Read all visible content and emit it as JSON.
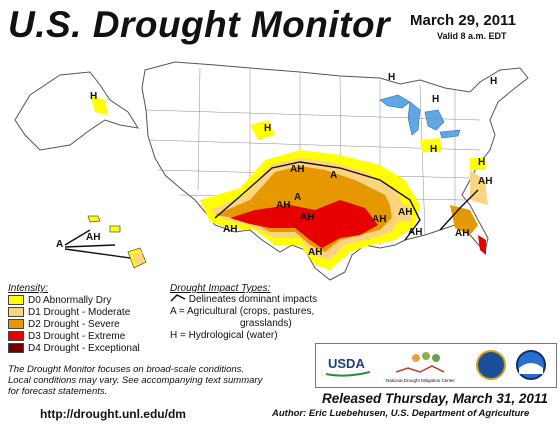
{
  "title": "U.S. Drought Monitor",
  "date": "March 29, 2011",
  "valid": "Valid 8 a.m. EDT",
  "legend": {
    "heading": "Intensity:",
    "items": [
      {
        "label": "D0 Abnormally Dry",
        "color": "#ffff00"
      },
      {
        "label": "D1 Drought - Moderate",
        "color": "#fcd37f"
      },
      {
        "label": "D2 Drought - Severe",
        "color": "#e69800"
      },
      {
        "label": "D3 Drought - Extreme",
        "color": "#e60000"
      },
      {
        "label": "D4 Drought - Exceptional",
        "color": "#730000"
      }
    ]
  },
  "impacts": {
    "heading": "Drought Impact Types:",
    "delineates": "Delineates dominant impacts",
    "ag_line1": "A = Agricultural (crops, pastures,",
    "ag_line2": "grasslands)",
    "hydro": "H = Hydrological (water)"
  },
  "map_labels": [
    "AH",
    "A",
    "AH",
    "AH",
    "AH",
    "AH",
    "AH",
    "AH",
    "AH",
    "AH",
    "AH",
    "H",
    "H",
    "H",
    "H",
    "H",
    "H",
    "H",
    "A",
    "AH",
    "A"
  ],
  "note_line1": "The Drought Monitor focuses on broad-scale conditions.",
  "note_line2": "Local conditions may vary. See accompanying text summary",
  "note_line3": "for forecast statements.",
  "url": "http://drought.unl.edu/dm",
  "released": "Released Thursday, March 31, 2011",
  "author": "Author: Eric Luebehusen, U.S. Department of Agriculture",
  "logos": {
    "usda": "USDA",
    "ndmc": "National Drought Mitigation Center"
  },
  "colors": {
    "water": "#5fa8e8",
    "land": "#ffffff",
    "border": "#555555"
  }
}
